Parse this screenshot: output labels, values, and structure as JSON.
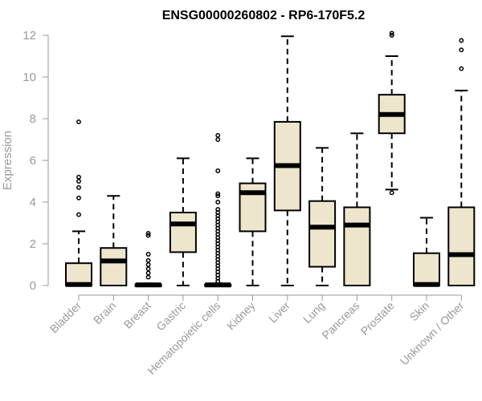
{
  "chart_data": {
    "type": "boxplot",
    "title": "ENSG00000260802 - RP6-170F5.2",
    "xlabel": "",
    "ylabel": "Expression",
    "ylim": [
      0,
      12
    ],
    "yticks": [
      0,
      2,
      4,
      6,
      8,
      10,
      12
    ],
    "grid": false,
    "legend": "none",
    "colors": {
      "box_fill": "#ede6cc",
      "stroke": "#000000",
      "axis": "#999999"
    },
    "categories": [
      "Bladder",
      "Brain",
      "Breast",
      "Gastric",
      "Hematopoietic cells",
      "Kidney",
      "Liver",
      "Lung",
      "Pancreas",
      "Prostate",
      "Skin",
      "Unknown / Other"
    ],
    "boxes": [
      {
        "min": 0,
        "q1": 0,
        "median": 0.05,
        "q3": 1.07,
        "max": 2.6,
        "outliers": [
          3.4,
          4.2,
          4.7,
          5.0,
          5.2,
          7.85
        ]
      },
      {
        "min": 0,
        "q1": 0,
        "median": 1.18,
        "q3": 1.8,
        "max": 4.3,
        "outliers": []
      },
      {
        "min": 0,
        "q1": 0,
        "median": 0.03,
        "q3": 0.05,
        "max": 0.1,
        "outliers": [
          0.4,
          0.6,
          0.8,
          1.0,
          1.2,
          1.5,
          2.4,
          2.5
        ]
      },
      {
        "min": 0,
        "q1": 1.6,
        "median": 2.95,
        "q3": 3.5,
        "max": 6.1,
        "outliers": []
      },
      {
        "min": 0,
        "q1": 0,
        "median": 0.03,
        "q3": 0.05,
        "max": 0.1,
        "outliers": [
          0.2,
          0.35,
          0.5,
          0.65,
          0.8,
          0.95,
          1.1,
          1.25,
          1.4,
          1.55,
          1.7,
          1.85,
          2.0,
          2.15,
          2.3,
          2.45,
          2.6,
          2.75,
          2.9,
          3.05,
          3.2,
          3.35,
          3.5,
          3.65,
          4.0,
          4.3,
          4.4,
          5.5,
          7.0,
          7.2
        ]
      },
      {
        "min": 0,
        "q1": 2.6,
        "median": 4.45,
        "q3": 4.9,
        "max": 6.1,
        "outliers": []
      },
      {
        "min": 0,
        "q1": 3.6,
        "median": 5.75,
        "q3": 7.85,
        "max": 11.95,
        "outliers": []
      },
      {
        "min": 0,
        "q1": 0.9,
        "median": 2.8,
        "q3": 4.05,
        "max": 6.6,
        "outliers": []
      },
      {
        "min": 0,
        "q1": 0,
        "median": 2.9,
        "q3": 3.75,
        "max": 7.3,
        "outliers": []
      },
      {
        "min": 4.6,
        "q1": 7.3,
        "median": 8.2,
        "q3": 9.15,
        "max": 11.0,
        "outliers": [
          4.45,
          12.0,
          12.1
        ]
      },
      {
        "min": 0,
        "q1": 0,
        "median": 0.05,
        "q3": 1.55,
        "max": 3.25,
        "outliers": []
      },
      {
        "min": 0,
        "q1": 0,
        "median": 1.48,
        "q3": 3.75,
        "max": 9.35,
        "outliers": [
          10.4,
          11.3,
          11.75
        ]
      }
    ]
  }
}
